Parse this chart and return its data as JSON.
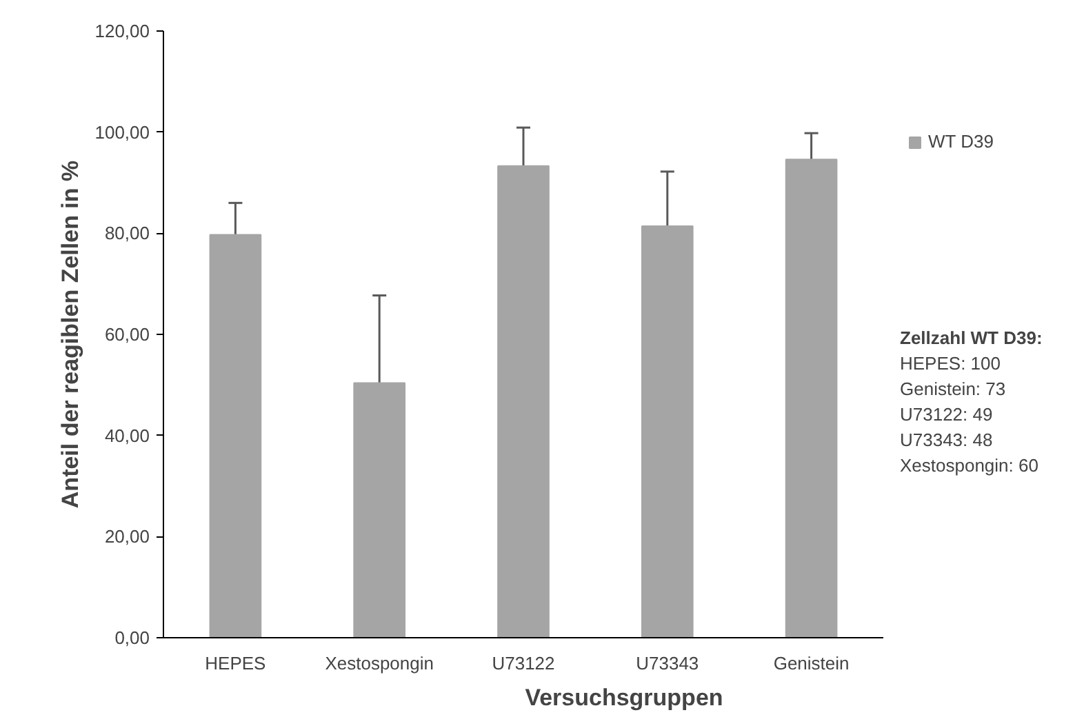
{
  "chart_data": {
    "type": "bar",
    "xlabel": "Versuchsgruppen",
    "ylabel": "Anteil der reagiblen Zellen in %",
    "categories": [
      "HEPES",
      "Xestospongin",
      "U73122",
      "U73343",
      "Genistein"
    ],
    "series": [
      {
        "name": "WT D39",
        "color": "#a5a5a5",
        "values": [
          79.7,
          50.4,
          93.3,
          81.4,
          94.6
        ],
        "errors": [
          [
            79.7,
            86.0
          ],
          [
            50.4,
            67.7
          ],
          [
            93.3,
            100.9
          ],
          [
            81.4,
            92.2
          ],
          [
            94.6,
            99.8
          ]
        ]
      }
    ],
    "ylim": [
      0,
      120
    ],
    "yticks": [
      {
        "value": 0,
        "label": "0,00"
      },
      {
        "value": 20,
        "label": "20,00"
      },
      {
        "value": 40,
        "label": "40,00"
      },
      {
        "value": 60,
        "label": "60,00"
      },
      {
        "value": 80,
        "label": "80,00"
      },
      {
        "value": 100,
        "label": "100,00"
      },
      {
        "value": 120,
        "label": "120,00"
      }
    ],
    "grid": false,
    "legend": "right",
    "annotations": [
      "Zellzahl  WT D39:",
      "HEPES: 100",
      "Genistein:  73",
      "U73122: 49",
      "U73343: 48",
      "Xestospongin: 60"
    ]
  }
}
